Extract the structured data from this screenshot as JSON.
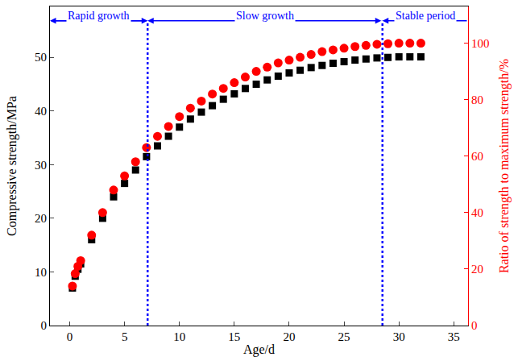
{
  "chart_data": {
    "type": "scatter",
    "x_label": "Age/d",
    "y_label": "Compressive strength/MPa",
    "y2_label": "Ratio of strength to maximum strength/%",
    "x": [
      0.25,
      0.5,
      0.75,
      1,
      2,
      3,
      4,
      5,
      6,
      7,
      8,
      9,
      10,
      11,
      12,
      13,
      14,
      15,
      16,
      17,
      18,
      19,
      20,
      21,
      22,
      23,
      24,
      25,
      26,
      27,
      28,
      29,
      30,
      31,
      32
    ],
    "series": [
      {
        "color": "#000000",
        "marker": "square",
        "values": [
          7,
          9.2,
          10.5,
          11.5,
          16,
          20,
          24,
          26.5,
          29,
          31.5,
          33.5,
          35.3,
          37,
          38.5,
          39.8,
          41,
          42.2,
          43.2,
          44.2,
          45,
          45.8,
          46.5,
          47.1,
          47.6,
          48.1,
          48.5,
          48.9,
          49.2,
          49.5,
          49.7,
          49.9,
          50,
          50.1,
          50.1,
          50.1
        ]
      },
      {
        "color": "#ff0000",
        "marker": "circle",
        "axis": "y2",
        "values": [
          14,
          18.4,
          21,
          23,
          32,
          40,
          48,
          53,
          58,
          63,
          67,
          70.5,
          74,
          77,
          79.5,
          82,
          84,
          86,
          88,
          90,
          91.5,
          93,
          94,
          95,
          96,
          97,
          97.6,
          98.2,
          98.8,
          99.2,
          99.6,
          99.8,
          100,
          100,
          100
        ]
      }
    ],
    "xlim": [
      -1.8,
      36.3
    ],
    "xticks": [
      0,
      5,
      10,
      15,
      20,
      25,
      30,
      35
    ],
    "ylim": [
      0,
      59.5
    ],
    "yticks": [
      0,
      10,
      20,
      30,
      40,
      50
    ],
    "y2lim": [
      0,
      113
    ],
    "y2ticks": [
      0,
      20,
      40,
      60,
      80,
      100
    ],
    "boundaries": [
      7.1,
      28.5
    ],
    "periods": [
      "Rapid growth",
      "Slow growth",
      "Stable period"
    ],
    "grid": false
  }
}
